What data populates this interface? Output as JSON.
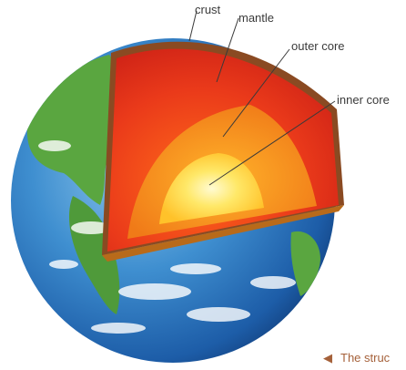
{
  "labels": {
    "crust": "crust",
    "mantle": "mantle",
    "outer_core": "outer core",
    "inner_core": "inner core"
  },
  "caption": {
    "arrow": "◀",
    "text": "The struc"
  },
  "colors": {
    "ocean": "#2f7fc3",
    "land": "#5aa640",
    "crust": "#8a4a22",
    "mantle": "#d9261a",
    "outer_core": "#f28a1a",
    "inner_core": "#ffe76a",
    "caption": "#a5613a"
  }
}
